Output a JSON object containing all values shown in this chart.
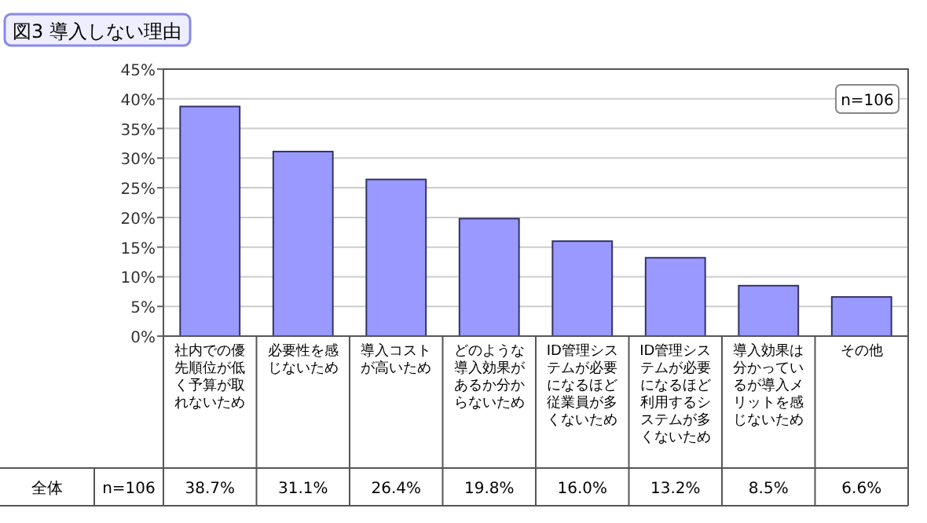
{
  "chart_data": {
    "type": "bar",
    "title": "図3 導入しない理由",
    "categories": [
      "社内での優先順位が低く予算が取れないため",
      "必要性を感じないため",
      "導入コストが高いため",
      "どのような導入効果があるか分からないため",
      "ID管理システムが必要になるほど従業員が多くないため",
      "ID管理システムが必要になるほど利用するシステムが多くないため",
      "導入効果は分かっているが導入メリットを感じないため",
      "その他"
    ],
    "values": [
      38.7,
      31.1,
      26.4,
      19.8,
      16.0,
      13.2,
      8.5,
      6.6
    ],
    "value_labels": [
      "38.7%",
      "31.1%",
      "26.4%",
      "19.8%",
      "16.0%",
      "13.2%",
      "8.5%",
      "6.6%"
    ],
    "color": "#9999ff",
    "ylim": [
      0,
      45
    ],
    "yticks": [
      {
        "value": 0,
        "label": "0%"
      },
      {
        "value": 5,
        "label": "5%"
      },
      {
        "value": 10,
        "label": "10%"
      },
      {
        "value": 15,
        "label": "15%"
      },
      {
        "value": 20,
        "label": "20%"
      },
      {
        "value": 25,
        "label": "25%"
      },
      {
        "value": 30,
        "label": "30%"
      },
      {
        "value": 35,
        "label": "35%"
      },
      {
        "value": 40,
        "label": "40%"
      },
      {
        "value": 45,
        "label": "45%"
      }
    ],
    "grid": "y",
    "annotations": [
      "n=106",
      "全体",
      "n=106"
    ]
  }
}
